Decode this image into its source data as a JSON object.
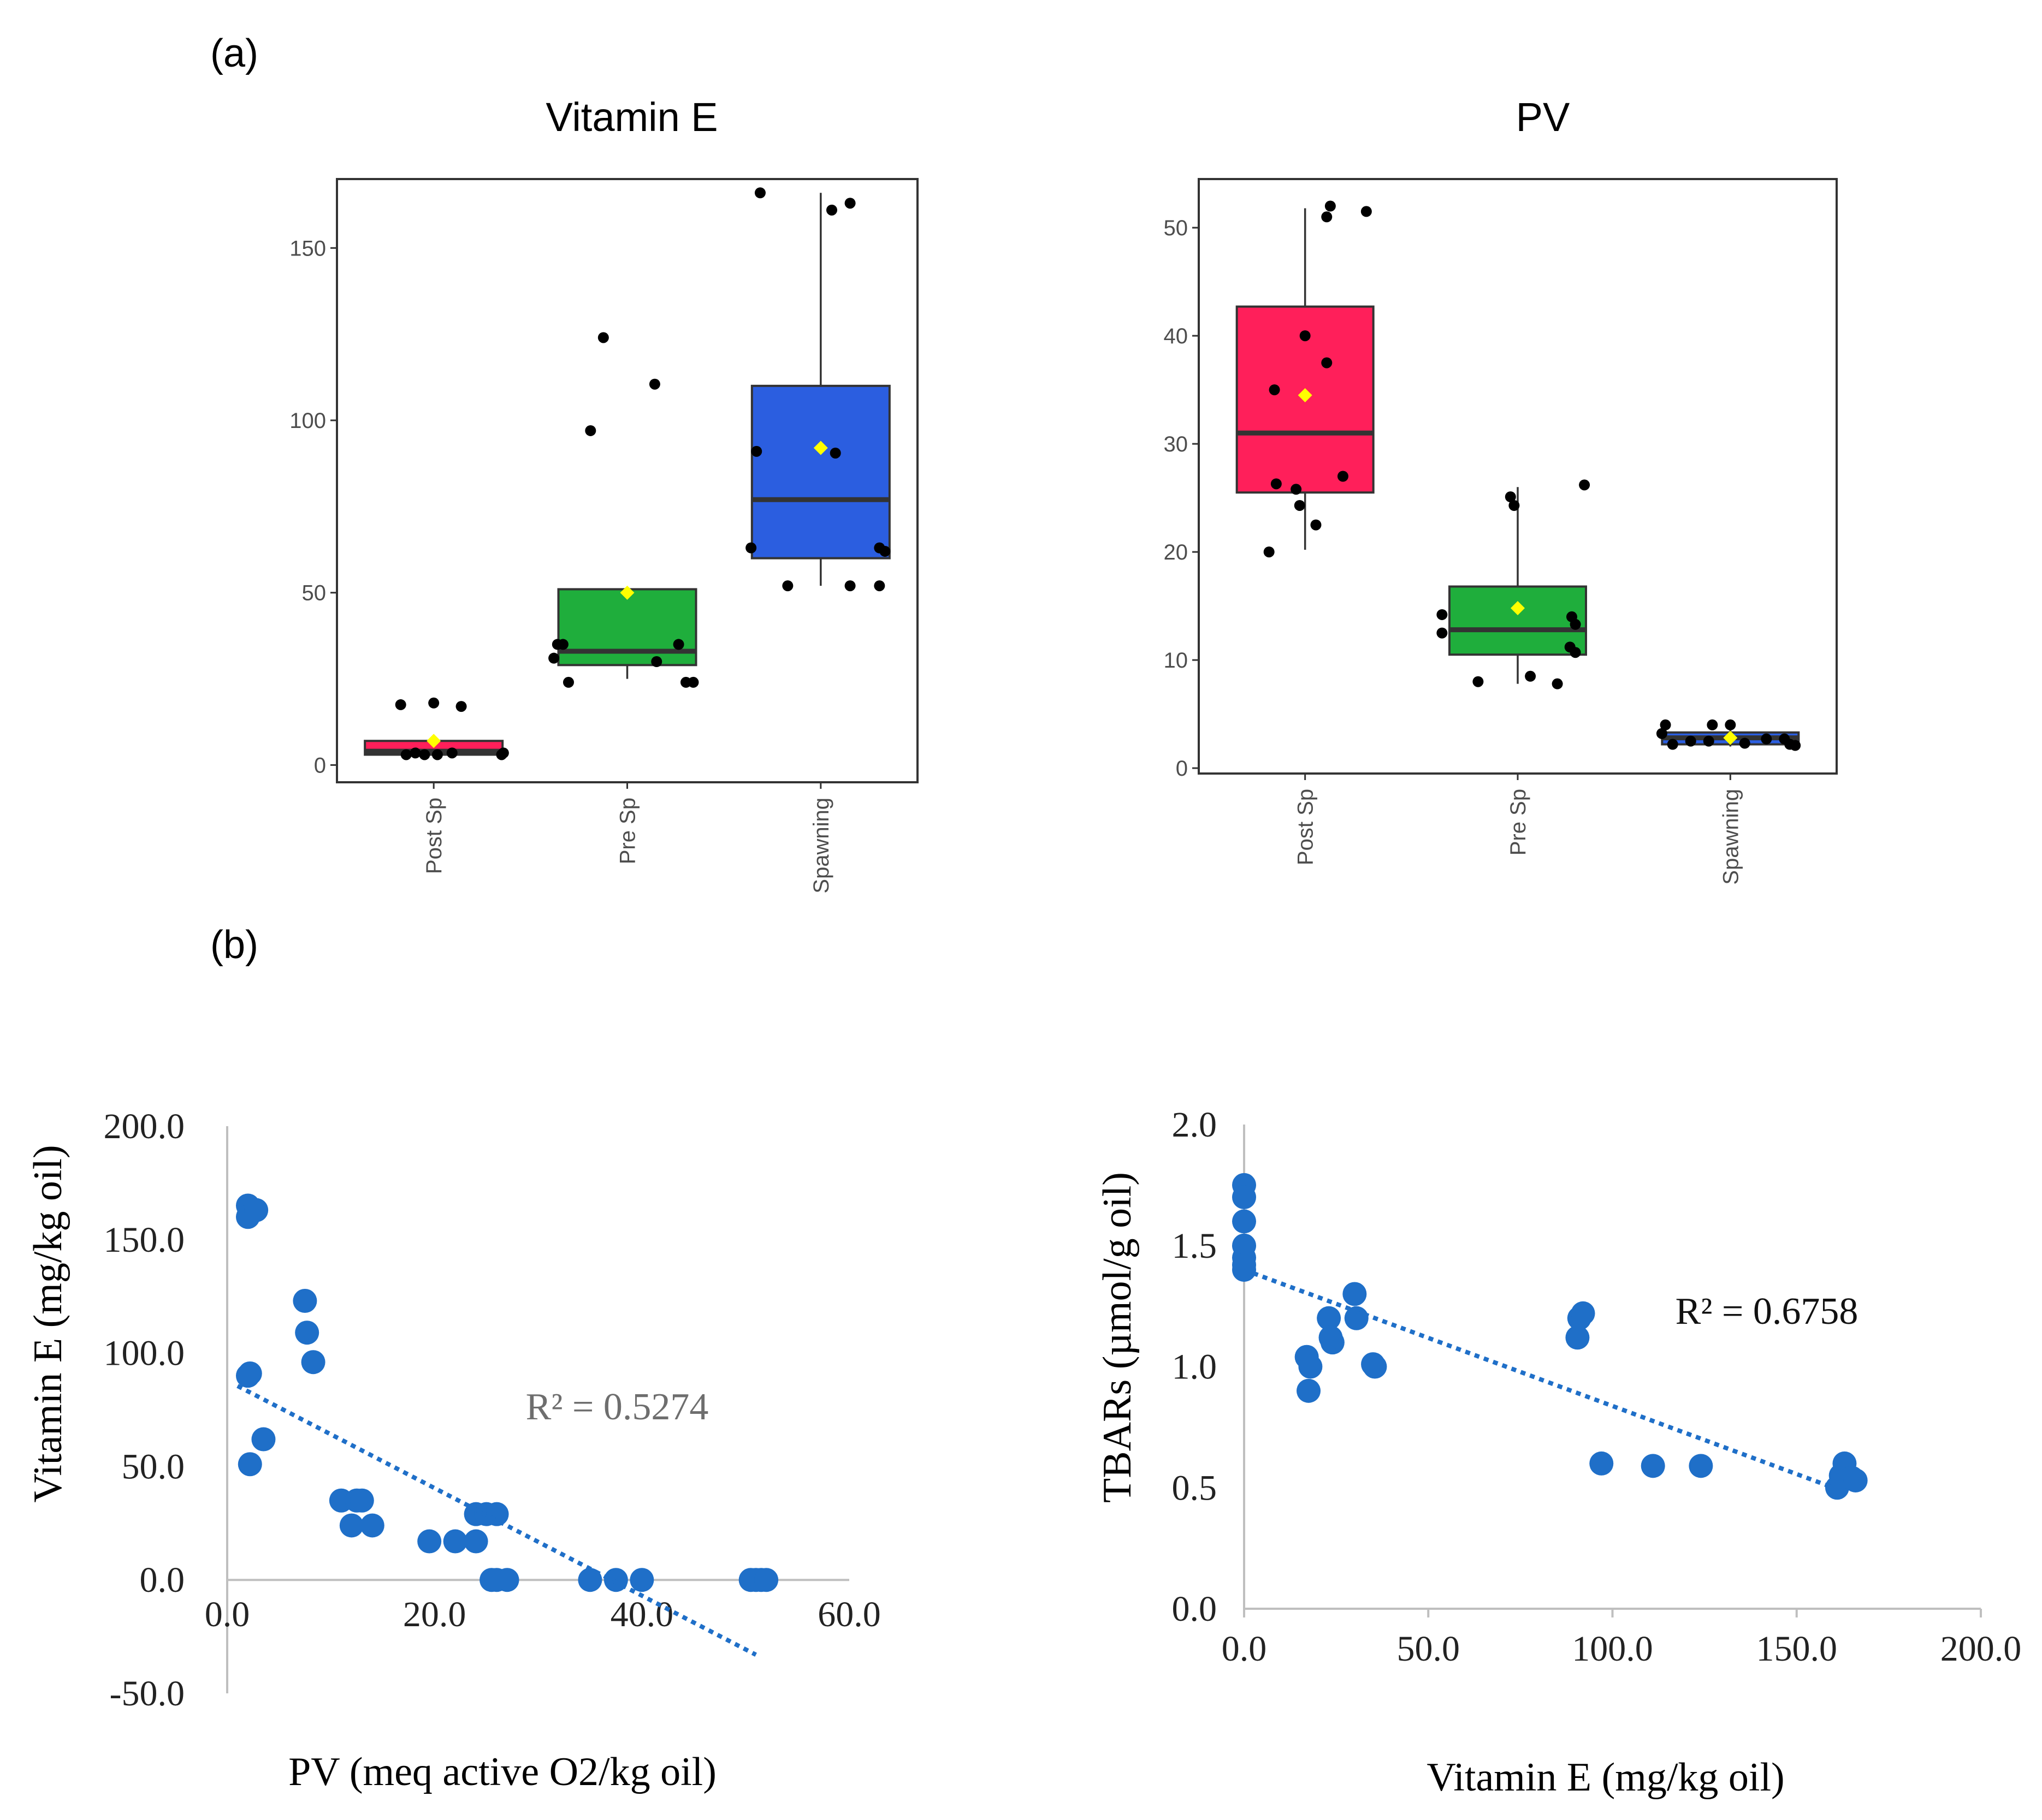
{
  "panel_labels": {
    "a": "(a)",
    "b": "(b)"
  },
  "colors": {
    "post_sp": "#ff1f5a",
    "pre_sp": "#1fae3c",
    "spawning": "#2b5ee0",
    "mean_marker": "#ffff00",
    "points": "#000000",
    "scatter_points": "#1f6fc8",
    "trendline": "#1f6fc8"
  },
  "chart_data": [
    {
      "id": "box_vite",
      "type": "box",
      "title": "Vitamin E",
      "categories": [
        "Post Sp",
        "Pre Sp",
        "Spawning"
      ],
      "ylim": [
        -5,
        170
      ],
      "yticks": [
        0,
        50,
        100,
        150
      ],
      "boxes": [
        {
          "q1": 3,
          "median": 4,
          "q3": 7,
          "whisker_low": 3,
          "whisker_high": 7,
          "mean": 7
        },
        {
          "q1": 29,
          "median": 33,
          "q3": 51,
          "whisker_low": 25,
          "whisker_high": 51,
          "mean": 50
        },
        {
          "q1": 60,
          "median": 77,
          "q3": 110,
          "whisker_low": 52,
          "whisker_high": 166,
          "mean": 92
        }
      ],
      "points": [
        [
          [
            -0.18,
            17.5
          ],
          [
            -0.15,
            3
          ],
          [
            -0.1,
            3.5
          ],
          [
            -0.05,
            3
          ],
          [
            0.0,
            18
          ],
          [
            0.02,
            3
          ],
          [
            0.1,
            3.5
          ],
          [
            0.15,
            17
          ],
          [
            0.38,
            3.5
          ],
          [
            0.37,
            3
          ]
        ],
        [
          [
            -0.4,
            31
          ],
          [
            -0.38,
            35
          ],
          [
            -0.35,
            35
          ],
          [
            -0.32,
            24
          ],
          [
            -0.2,
            97
          ],
          [
            -0.13,
            124
          ],
          [
            0.15,
            110.5
          ],
          [
            0.16,
            30
          ],
          [
            0.28,
            35
          ],
          [
            0.32,
            24
          ],
          [
            0.36,
            24
          ]
        ],
        [
          [
            -0.38,
            63
          ],
          [
            -0.35,
            91
          ],
          [
            -0.33,
            166
          ],
          [
            -0.18,
            52
          ],
          [
            0.06,
            161
          ],
          [
            0.08,
            90.5
          ],
          [
            0.16,
            163
          ],
          [
            0.16,
            52
          ],
          [
            0.32,
            52
          ],
          [
            0.32,
            63
          ],
          [
            0.35,
            62
          ]
        ]
      ]
    },
    {
      "id": "box_pv",
      "type": "box",
      "title": "PV",
      "categories": [
        "Post Sp",
        "Pre Sp",
        "Spawning"
      ],
      "ylim": [
        -0.5,
        54.5
      ],
      "yticks": [
        0,
        10,
        20,
        30,
        40,
        50
      ],
      "boxes": [
        {
          "q1": 25.5,
          "median": 31,
          "q3": 42.7,
          "whisker_low": 20.2,
          "whisker_high": 51.8,
          "mean": 34.5
        },
        {
          "q1": 10.5,
          "median": 12.8,
          "q3": 16.8,
          "whisker_low": 7.8,
          "whisker_high": 26,
          "mean": 14.8
        },
        {
          "q1": 2.2,
          "median": 2.8,
          "q3": 3.3,
          "whisker_low": 2,
          "whisker_high": 3.5,
          "mean": 2.8
        }
      ],
      "points": [
        [
          [
            -0.2,
            20
          ],
          [
            -0.17,
            35
          ],
          [
            -0.16,
            26.3
          ],
          [
            -0.05,
            25.8
          ],
          [
            -0.03,
            24.3
          ],
          [
            0.0,
            40
          ],
          [
            0.06,
            22.5
          ],
          [
            0.12,
            51
          ],
          [
            0.12,
            37.5
          ],
          [
            0.21,
            27
          ],
          [
            0.34,
            51.5
          ],
          [
            0.14,
            52
          ]
        ],
        [
          [
            -0.42,
            14.2
          ],
          [
            -0.42,
            12.5
          ],
          [
            -0.22,
            8
          ],
          [
            -0.02,
            24.3
          ],
          [
            -0.04,
            25.1
          ],
          [
            0.07,
            8.5
          ],
          [
            0.22,
            7.8
          ],
          [
            0.29,
            11.2
          ],
          [
            0.3,
            14
          ],
          [
            0.32,
            13.3
          ],
          [
            0.32,
            10.7
          ],
          [
            0.37,
            26.2
          ]
        ],
        [
          [
            -0.38,
            3.2
          ],
          [
            -0.36,
            4
          ],
          [
            -0.32,
            2.2
          ],
          [
            -0.22,
            2.5
          ],
          [
            -0.1,
            4
          ],
          [
            -0.12,
            2.5
          ],
          [
            0.0,
            4
          ],
          [
            0.08,
            2.3
          ],
          [
            0.2,
            2.7
          ],
          [
            0.3,
            2.7
          ],
          [
            0.33,
            2.2
          ],
          [
            0.36,
            2.1
          ]
        ]
      ]
    },
    {
      "id": "scatter_vite_pv",
      "type": "scatter",
      "xlabel": "PV (meq active O2/kg oil)",
      "ylabel": "Vitamin E (mg/kg oil)",
      "xlim": [
        0,
        60
      ],
      "ylim": [
        -50,
        200
      ],
      "xticks": [
        "0.0",
        "20.0",
        "40.0",
        "60.0"
      ],
      "yticks": [
        "-50.0",
        "0.0",
        "50.0",
        "100.0",
        "150.0",
        "200.0"
      ],
      "r2_label": "R² = 0.5274",
      "trendline": {
        "x": [
          1,
          51
        ],
        "y": [
          85.5,
          -33
        ]
      },
      "points": [
        [
          2,
          165
        ],
        [
          2,
          160
        ],
        [
          2.8,
          163
        ],
        [
          2,
          90
        ],
        [
          2.2,
          91
        ],
        [
          2.2,
          51
        ],
        [
          3.5,
          62
        ],
        [
          7.5,
          123
        ],
        [
          7.7,
          109
        ],
        [
          8.3,
          96
        ],
        [
          11,
          35
        ],
        [
          12,
          24
        ],
        [
          12.5,
          35
        ],
        [
          13,
          35
        ],
        [
          14,
          24
        ],
        [
          19.5,
          17
        ],
        [
          22,
          17
        ],
        [
          24,
          17
        ],
        [
          24,
          29
        ],
        [
          25,
          29
        ],
        [
          26,
          29
        ],
        [
          25.5,
          0
        ],
        [
          26,
          0
        ],
        [
          27,
          0
        ],
        [
          35,
          0
        ],
        [
          37.5,
          0
        ],
        [
          40,
          0
        ],
        [
          50.5,
          0
        ],
        [
          51,
          0
        ],
        [
          51.5,
          0
        ],
        [
          52,
          0
        ]
      ]
    },
    {
      "id": "scatter_tbars_vite",
      "type": "scatter",
      "xlabel": "Vitamin E (mg/kg oil)",
      "ylabel": "TBARs (µmol/g oil)",
      "xlim": [
        0,
        200
      ],
      "ylim": [
        0,
        2
      ],
      "xticks": [
        "0.0",
        "50.0",
        "100.0",
        "150.0",
        "200.0"
      ],
      "yticks": [
        "0.0",
        "0.5",
        "1.0",
        "1.5",
        "2.0"
      ],
      "r2_label": "R² = 0.6758",
      "trendline": {
        "x": [
          0,
          160
        ],
        "y": [
          1.4,
          0.5
        ]
      },
      "points": [
        [
          0,
          1.75
        ],
        [
          0,
          1.7
        ],
        [
          0,
          1.6
        ],
        [
          0,
          1.5
        ],
        [
          0,
          1.45
        ],
        [
          0,
          1.4
        ],
        [
          0,
          1.42
        ],
        [
          17,
          1.04
        ],
        [
          18,
          1.0
        ],
        [
          17.5,
          0.9
        ],
        [
          23,
          1.2
        ],
        [
          24,
          1.1
        ],
        [
          23.5,
          1.12
        ],
        [
          30,
          1.3
        ],
        [
          30.5,
          1.2
        ],
        [
          35,
          1.01
        ],
        [
          35.5,
          1.0
        ],
        [
          90.5,
          1.12
        ],
        [
          91,
          1.2
        ],
        [
          92,
          1.22
        ],
        [
          97,
          0.6
        ],
        [
          111,
          0.59
        ],
        [
          124,
          0.59
        ],
        [
          161,
          0.5
        ],
        [
          162,
          0.55
        ],
        [
          163,
          0.6
        ],
        [
          165,
          0.54
        ],
        [
          166,
          0.53
        ]
      ]
    }
  ]
}
